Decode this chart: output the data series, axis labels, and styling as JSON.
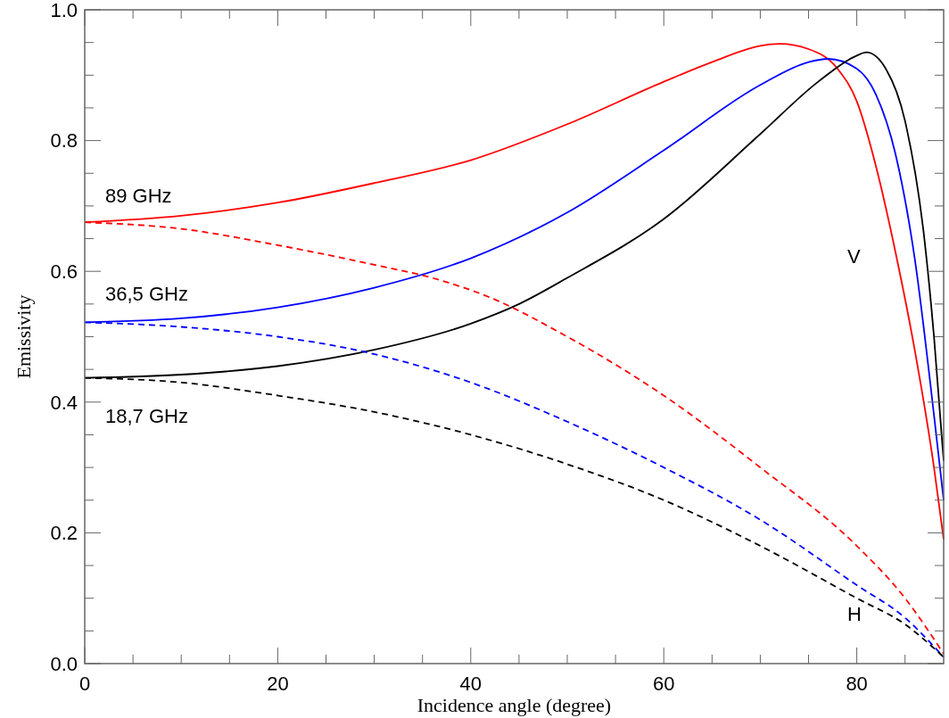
{
  "chart_data": {
    "type": "line",
    "xlabel": "Incidence angle (degree)",
    "ylabel": "Emissivity",
    "xlim": [
      0,
      89
    ],
    "ylim": [
      0,
      1
    ],
    "xticks": [
      0,
      {
        "value": 5,
        "label": null
      },
      {
        "value": 10,
        "label": null
      },
      {
        "value": 15,
        "label": null
      },
      20,
      {
        "value": 25,
        "label": null
      },
      {
        "value": 30,
        "label": null
      },
      {
        "value": 35,
        "label": null
      },
      40,
      {
        "value": 45,
        "label": null
      },
      {
        "value": 50,
        "label": null
      },
      {
        "value": 55,
        "label": null
      },
      60,
      {
        "value": 65,
        "label": null
      },
      {
        "value": 70,
        "label": null
      },
      {
        "value": 75,
        "label": null
      },
      80,
      {
        "value": 85,
        "label": null
      }
    ],
    "yticks": [
      {
        "value": 0,
        "label": "0.0"
      },
      {
        "value": 0.05,
        "label": null
      },
      {
        "value": 0.1,
        "label": null
      },
      {
        "value": 0.15,
        "label": null
      },
      0.2,
      {
        "value": 0.25,
        "label": null
      },
      {
        "value": 0.3,
        "label": null
      },
      {
        "value": 0.35,
        "label": null
      },
      0.4,
      {
        "value": 0.45,
        "label": null
      },
      {
        "value": 0.5,
        "label": null
      },
      {
        "value": 0.55,
        "label": null
      },
      0.6,
      {
        "value": 0.65,
        "label": null
      },
      {
        "value": 0.7,
        "label": null
      },
      {
        "value": 0.75,
        "label": null
      },
      0.8,
      {
        "value": 0.85,
        "label": null
      },
      {
        "value": 0.9,
        "label": null
      },
      {
        "value": 0.95,
        "label": null
      },
      {
        "value": 1,
        "label": "1.0"
      }
    ],
    "grid": false,
    "series": [
      {
        "color": "#ff0000",
        "line_style": "solid",
        "x": [
          0,
          10,
          20,
          30,
          40,
          50,
          60,
          65,
          70,
          72,
          75,
          78,
          80,
          82,
          84,
          86,
          88,
          89
        ],
        "values": [
          0.675,
          0.685,
          0.705,
          0.735,
          0.77,
          0.825,
          0.89,
          0.92,
          0.945,
          0.948,
          0.94,
          0.91,
          0.86,
          0.76,
          0.63,
          0.48,
          0.3,
          0.19
        ]
      },
      {
        "color": "#0000ff",
        "line_style": "solid",
        "x": [
          0,
          10,
          20,
          30,
          40,
          50,
          60,
          70,
          75,
          77,
          80,
          82,
          84,
          86,
          88,
          89
        ],
        "values": [
          0.522,
          0.528,
          0.545,
          0.575,
          0.62,
          0.69,
          0.785,
          0.885,
          0.92,
          0.925,
          0.91,
          0.87,
          0.78,
          0.62,
          0.38,
          0.25
        ]
      },
      {
        "color": "#000000",
        "line_style": "solid",
        "x": [
          0,
          10,
          20,
          30,
          40,
          45,
          50,
          60,
          70,
          76,
          80,
          81,
          83,
          85,
          87,
          88,
          89
        ],
        "values": [
          0.437,
          0.442,
          0.455,
          0.48,
          0.52,
          0.55,
          0.59,
          0.68,
          0.81,
          0.89,
          0.93,
          0.935,
          0.91,
          0.83,
          0.65,
          0.5,
          0.31
        ]
      },
      {
        "color": "#ff0000",
        "line_style": "dashed",
        "x": [
          0,
          10,
          20,
          30,
          36,
          42,
          50,
          60,
          70,
          80,
          85,
          89
        ],
        "values": [
          0.675,
          0.665,
          0.64,
          0.61,
          0.59,
          0.56,
          0.5,
          0.41,
          0.3,
          0.18,
          0.1,
          0.015
        ]
      },
      {
        "color": "#0000ff",
        "line_style": "dashed",
        "x": [
          0,
          10,
          20,
          28,
          40,
          50,
          60,
          70,
          80,
          85,
          89
        ],
        "values": [
          0.522,
          0.515,
          0.5,
          0.48,
          0.43,
          0.37,
          0.3,
          0.22,
          0.12,
          0.07,
          0.01
        ]
      },
      {
        "color": "#000000",
        "line_style": "dashed",
        "x": [
          0,
          10,
          20,
          30,
          40,
          50,
          60,
          70,
          80,
          85,
          89
        ],
        "values": [
          0.437,
          0.43,
          0.41,
          0.385,
          0.35,
          0.305,
          0.25,
          0.18,
          0.1,
          0.06,
          0.01
        ]
      }
    ],
    "annotations": [
      "89 GHz",
      "36,5 GHz",
      "18,7 GHz",
      "V",
      "H"
    ]
  }
}
